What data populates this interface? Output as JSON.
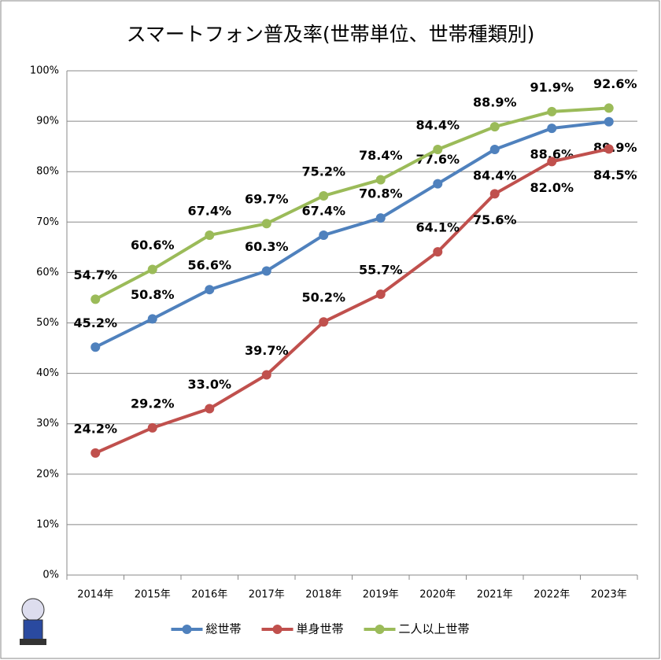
{
  "chart_data": {
    "type": "line",
    "title": "スマートフォン普及率(世帯単位、世帯種類別)",
    "categories": [
      "2014年",
      "2015年",
      "2016年",
      "2017年",
      "2018年",
      "2019年",
      "2020年",
      "2021年",
      "2022年",
      "2023年"
    ],
    "ylim": [
      0,
      100
    ],
    "yticks": [
      {
        "value": 0,
        "label": "0%"
      },
      {
        "value": 10,
        "label": "10%"
      },
      {
        "value": 20,
        "label": "20%"
      },
      {
        "value": 30,
        "label": "30%"
      },
      {
        "value": 40,
        "label": "40%"
      },
      {
        "value": 50,
        "label": "50%"
      },
      {
        "value": 60,
        "label": "60%"
      },
      {
        "value": 70,
        "label": "70%"
      },
      {
        "value": 80,
        "label": "80%"
      },
      {
        "value": 90,
        "label": "90%"
      },
      {
        "value": 100,
        "label": "100%"
      }
    ],
    "grid": true,
    "legend": "bottom",
    "series": [
      {
        "name": "総世帯",
        "color": "#4f81bd",
        "values": [
          45.2,
          50.8,
          56.6,
          60.3,
          67.4,
          70.8,
          77.6,
          84.4,
          88.6,
          89.9
        ],
        "value_labels": [
          "45.2%",
          "50.8%",
          "56.6%",
          "60.3%",
          "67.4%",
          "70.8%",
          "77.6%",
          "84.4%",
          "88.6%",
          "89.9%"
        ]
      },
      {
        "name": "単身世帯",
        "color": "#c0504d",
        "values": [
          24.2,
          29.2,
          33.0,
          39.7,
          50.2,
          55.7,
          64.1,
          75.6,
          82.0,
          84.5
        ],
        "value_labels": [
          "24.2%",
          "29.2%",
          "33.0%",
          "39.7%",
          "50.2%",
          "55.7%",
          "64.1%",
          "75.6%",
          "82.0%",
          "84.5%"
        ]
      },
      {
        "name": "二人以上世帯",
        "color": "#9bbb59",
        "values": [
          54.7,
          60.6,
          67.4,
          69.7,
          75.2,
          78.4,
          84.4,
          88.9,
          91.9,
          92.6
        ],
        "value_labels": [
          "54.7%",
          "60.6%",
          "67.4%",
          "69.7%",
          "75.2%",
          "78.4%",
          "84.4%",
          "88.9%",
          "91.9%",
          "92.6%"
        ]
      }
    ]
  }
}
